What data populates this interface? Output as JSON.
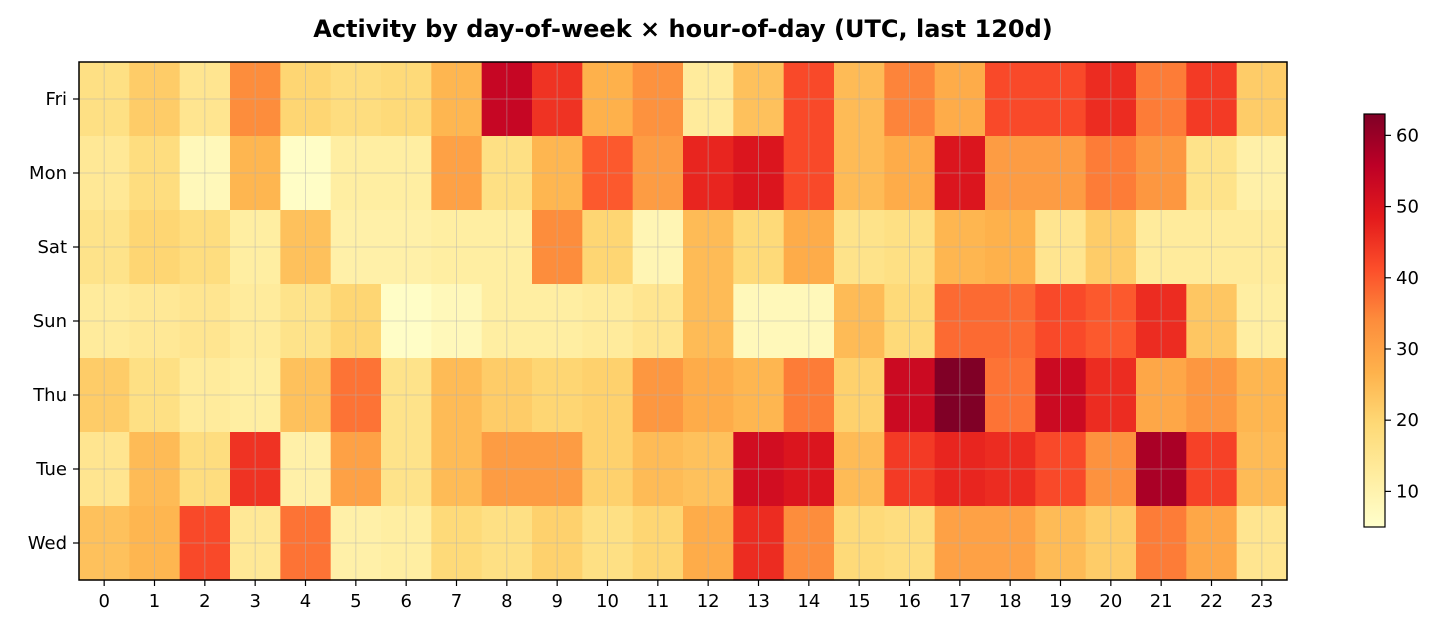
{
  "chart_data": {
    "type": "heatmap",
    "title": "Activity by day-of-week × hour-of-day (UTC, last 120d)",
    "xlabel": "",
    "ylabel": "",
    "x_categories": [
      "0",
      "1",
      "2",
      "3",
      "4",
      "5",
      "6",
      "7",
      "8",
      "9",
      "10",
      "11",
      "12",
      "13",
      "14",
      "15",
      "16",
      "17",
      "18",
      "19",
      "20",
      "21",
      "22",
      "23"
    ],
    "y_categories": [
      "Fri",
      "Mon",
      "Sat",
      "Sun",
      "Thu",
      "Tue",
      "Wed"
    ],
    "values": [
      [
        17,
        22,
        15,
        34,
        20,
        18,
        19,
        26,
        54,
        45,
        27,
        33,
        13,
        24,
        42,
        25,
        35,
        28,
        42,
        42,
        46,
        36,
        44,
        22
      ],
      [
        14,
        18,
        8,
        26,
        6,
        12,
        12,
        30,
        17,
        26,
        40,
        31,
        47,
        50,
        42,
        25,
        28,
        50,
        31,
        31,
        36,
        32,
        16,
        11
      ],
      [
        16,
        20,
        18,
        12,
        24,
        11,
        11,
        12,
        12,
        34,
        20,
        9,
        25,
        19,
        28,
        16,
        17,
        26,
        27,
        15,
        22,
        13,
        13,
        13
      ],
      [
        13,
        14,
        15,
        13,
        16,
        20,
        6,
        8,
        12,
        12,
        13,
        15,
        25,
        8,
        8,
        25,
        19,
        38,
        38,
        42,
        40,
        46,
        23,
        12
      ],
      [
        22,
        17,
        13,
        12,
        24,
        37,
        16,
        25,
        22,
        20,
        21,
        32,
        28,
        26,
        36,
        21,
        53,
        63,
        37,
        53,
        46,
        29,
        32,
        26
      ],
      [
        15,
        25,
        18,
        45,
        11,
        30,
        16,
        25,
        31,
        31,
        21,
        25,
        24,
        52,
        50,
        25,
        44,
        47,
        46,
        42,
        33,
        58,
        43,
        25
      ],
      [
        24,
        26,
        42,
        14,
        37,
        11,
        12,
        19,
        17,
        21,
        17,
        20,
        28,
        46,
        34,
        19,
        18,
        30,
        30,
        25,
        22,
        36,
        29,
        15
      ]
    ],
    "zlim": [
      5,
      63
    ],
    "colormap": "YlOrRd",
    "colorbar_ticks": [
      "10",
      "20",
      "30",
      "40",
      "50",
      "60"
    ],
    "colorbar_tick_values": [
      10,
      20,
      30,
      40,
      50,
      60
    ],
    "grid": true,
    "legend": "colorbar-right"
  }
}
